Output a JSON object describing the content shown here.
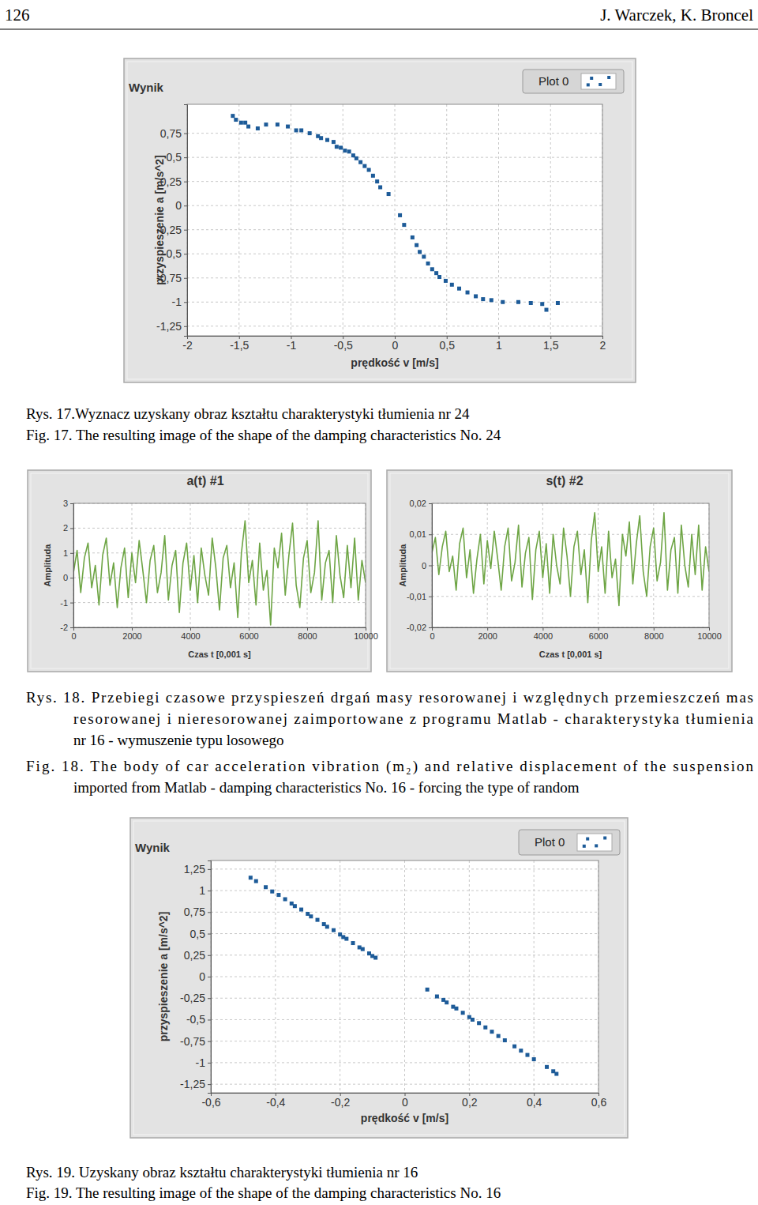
{
  "header": {
    "page": "126",
    "authors": "J. Warczek, K. Broncel"
  },
  "captions": {
    "fig17": {
      "pl": [
        "Rys. 17.Wyznacz uzyskany obraz kształtu charakterystyki tłumienia nr 24"
      ],
      "en": [
        "Fig. 17. The resulting image of the shape of the damping characteristics No. 24"
      ]
    },
    "fig18": {
      "pl": [
        "Rys. 18. Przebiegi czasowe przyspieszeń drgań masy resorowanej i względnych przemieszczeń mas",
        "resorowanej i nieresorowanej zaimportowane z programu Matlab - charakterystyka tłumienia",
        "nr 16 - wymuszenie typu losowego"
      ],
      "en": [
        "Fig. 18. The body of car acceleration vibration  (m₂) and relative displacement of the suspension",
        "imported from Matlab - damping characteristics No. 16 - forcing the type of random"
      ]
    },
    "fig19": {
      "pl": [
        "Rys. 19. Uzyskany obraz kształtu charakterystyki tłumienia nr 16"
      ],
      "en": [
        "Fig. 19. The resulting image of the shape of the damping characteristics No. 16"
      ]
    }
  },
  "chart_data": [
    {
      "type": "scatter",
      "title": "Wynik",
      "xlabel": "prędkość v [m/s]",
      "ylabel": "przyspieszenie a [m/s^2]",
      "xlim": [
        -2,
        2
      ],
      "ylim": [
        -1.35,
        1.05
      ],
      "xticks": [
        -2,
        {
          "value": -1.5,
          "label": "-1,5"
        },
        -1,
        {
          "value": -0.5,
          "label": "-0,5"
        },
        0,
        {
          "value": 0.5,
          "label": "0,5"
        },
        1,
        {
          "value": 1.5,
          "label": "1,5"
        },
        2
      ],
      "yticks": [
        {
          "value": -1.25,
          "label": "-1,25"
        },
        -1,
        {
          "value": -0.75,
          "label": "-0,75"
        },
        {
          "value": -0.5,
          "label": "-0,5"
        },
        {
          "value": -0.25,
          "label": "-0,25"
        },
        0,
        {
          "value": 0.25,
          "label": "0,25"
        },
        {
          "value": 0.5,
          "label": "0,5"
        },
        {
          "value": 0.75,
          "label": "0,75"
        }
      ],
      "grid": true,
      "legend": "top-right",
      "x": [
        -1.56,
        -1.53,
        -1.48,
        -1.44,
        -1.41,
        -1.32,
        -1.24,
        -1.13,
        -1.03,
        -0.95,
        -0.9,
        -0.82,
        -0.74,
        -0.71,
        -0.65,
        -0.59,
        -0.56,
        -0.52,
        -0.48,
        -0.44,
        -0.4,
        -0.37,
        -0.33,
        -0.29,
        -0.25,
        -0.21,
        -0.17,
        -0.14,
        -0.06,
        0.05,
        0.09,
        0.17,
        0.21,
        0.24,
        0.28,
        0.32,
        0.36,
        0.4,
        0.43,
        0.49,
        0.55,
        0.62,
        0.7,
        0.78,
        0.85,
        0.93,
        1.04,
        1.19,
        1.31,
        1.42,
        1.57,
        1.46
      ],
      "series": [
        {
          "name": "Plot 0",
          "color": "#1d5b98",
          "marker": "square",
          "values": [
            0.93,
            0.89,
            0.86,
            0.86,
            0.82,
            0.8,
            0.84,
            0.84,
            0.82,
            0.78,
            0.78,
            0.75,
            0.72,
            0.7,
            0.68,
            0.66,
            0.61,
            0.6,
            0.57,
            0.56,
            0.52,
            0.49,
            0.45,
            0.41,
            0.37,
            0.31,
            0.25,
            0.19,
            0.12,
            -0.1,
            -0.2,
            -0.33,
            -0.41,
            -0.48,
            -0.53,
            -0.6,
            -0.66,
            -0.7,
            -0.74,
            -0.78,
            -0.82,
            -0.86,
            -0.9,
            -0.94,
            -0.97,
            -0.98,
            -1,
            -1,
            -1.01,
            -1.02,
            -1.01,
            -1.08
          ]
        }
      ]
    },
    {
      "type": "line",
      "title": "a(t) #1",
      "xlabel": "Czas t [0,001 s]",
      "ylabel": "Amplituda",
      "xlim": [
        0,
        10000
      ],
      "ylim": [
        -2,
        3
      ],
      "xticks": [
        0,
        2000,
        4000,
        6000,
        8000,
        10000
      ],
      "yticks": [
        -2,
        -1,
        0,
        1,
        2,
        3
      ],
      "grid": true,
      "x": [
        0,
        125,
        250,
        375,
        500,
        625,
        750,
        875,
        1000,
        1125,
        1250,
        1375,
        1500,
        1625,
        1750,
        1875,
        2000,
        2125,
        2250,
        2375,
        2500,
        2625,
        2750,
        2875,
        3000,
        3125,
        3250,
        3375,
        3500,
        3625,
        3750,
        3875,
        4000,
        4125,
        4250,
        4375,
        4500,
        4625,
        4750,
        4875,
        5000,
        5125,
        5250,
        5375,
        5500,
        5625,
        5750,
        5875,
        6000,
        6125,
        6250,
        6375,
        6500,
        6625,
        6750,
        6875,
        7000,
        7125,
        7250,
        7375,
        7500,
        7625,
        7750,
        7875,
        8000,
        8125,
        8250,
        8375,
        8500,
        8625,
        8750,
        8875,
        9000,
        9125,
        9250,
        9375,
        9500,
        9625,
        9750,
        9875,
        10000
      ],
      "series": [
        {
          "color": "#6ea545",
          "values": [
            0.2,
            1.1,
            -0.6,
            0.8,
            1.4,
            -0.4,
            0.5,
            -1.1,
            0.9,
            1.6,
            -0.3,
            0.6,
            -1.2,
            0.4,
            1.2,
            -0.8,
            1.0,
            -0.2,
            1.5,
            0.3,
            -1.0,
            0.7,
            1.3,
            -0.6,
            0.2,
            1.7,
            -0.9,
            0.5,
            1.1,
            -1.4,
            0.6,
            1.4,
            -0.5,
            0.9,
            -1.0,
            1.2,
            0.1,
            -0.7,
            1.6,
            0.4,
            -1.3,
            0.8,
            1.3,
            -0.4,
            0.6,
            -1.6,
            1.0,
            2.3,
            -0.2,
            0.7,
            -1.1,
            1.4,
            -0.5,
            0.3,
            -1.9,
            1.2,
            0.4,
            1.8,
            -0.7,
            0.9,
            2.2,
            -0.3,
            -1.2,
            0.8,
            1.5,
            -0.6,
            0.2,
            2.3,
            -0.9,
            0.6,
            1.1,
            -1.0,
            1.7,
            0.1,
            -0.8,
            1.3,
            -0.4,
            1.6,
            -0.9,
            0.7,
            -0.2
          ]
        }
      ]
    },
    {
      "type": "line",
      "title": "s(t) #2",
      "xlabel": "Czas t [0,001 s]",
      "ylabel": "Amplituda",
      "xlim": [
        0,
        10000
      ],
      "ylim": [
        -0.02,
        0.02
      ],
      "xticks": [
        0,
        2000,
        4000,
        6000,
        8000,
        10000
      ],
      "yticks": [
        {
          "value": -0.02,
          "label": "-0,02"
        },
        {
          "value": -0.01,
          "label": "-0,01"
        },
        0,
        {
          "value": 0.01,
          "label": "0,01"
        },
        {
          "value": 0.02,
          "label": "0,02"
        }
      ],
      "grid": true,
      "x": [
        0,
        125,
        250,
        375,
        500,
        625,
        750,
        875,
        1000,
        1125,
        1250,
        1375,
        1500,
        1625,
        1750,
        1875,
        2000,
        2125,
        2250,
        2375,
        2500,
        2625,
        2750,
        2875,
        3000,
        3125,
        3250,
        3375,
        3500,
        3625,
        3750,
        3875,
        4000,
        4125,
        4250,
        4375,
        4500,
        4625,
        4750,
        4875,
        5000,
        5125,
        5250,
        5375,
        5500,
        5625,
        5750,
        5875,
        6000,
        6125,
        6250,
        6375,
        6500,
        6625,
        6750,
        6875,
        7000,
        7125,
        7250,
        7375,
        7500,
        7625,
        7750,
        7875,
        8000,
        8125,
        8250,
        8375,
        8500,
        8625,
        8750,
        8875,
        9000,
        9125,
        9250,
        9375,
        9500,
        9625,
        9750,
        9875,
        10000
      ],
      "series": [
        {
          "color": "#6ea545",
          "values": [
            0.004,
            0.009,
            -0.003,
            0.006,
            0.011,
            -0.002,
            0.003,
            -0.008,
            0.007,
            0.012,
            -0.004,
            0.005,
            -0.009,
            0.002,
            0.01,
            -0.006,
            0.008,
            -0.001,
            0.011,
            0.002,
            -0.008,
            0.006,
            0.012,
            -0.005,
            0.001,
            0.013,
            -0.007,
            0.004,
            0.009,
            -0.011,
            0.005,
            0.011,
            -0.004,
            0.007,
            -0.009,
            0.01,
            0,
            -0.006,
            0.012,
            0.003,
            -0.01,
            0.006,
            0.011,
            -0.003,
            0.005,
            -0.012,
            0.008,
            0.017,
            -0.002,
            0.006,
            -0.009,
            0.011,
            -0.004,
            0.002,
            -0.013,
            0.01,
            0.003,
            0.014,
            -0.006,
            0.007,
            0.016,
            -0.002,
            -0.01,
            0.006,
            0.012,
            -0.005,
            0.001,
            0.017,
            -0.008,
            0.005,
            0.009,
            -0.009,
            0.013,
            0,
            -0.007,
            0.01,
            -0.003,
            0.013,
            -0.008,
            0.006,
            -0.002
          ]
        }
      ]
    },
    {
      "type": "scatter",
      "title": "Wynik",
      "xlabel": "prędkość v [m/s]",
      "ylabel": "przyspieszenie a [m/s^2]",
      "xlim": [
        -0.6,
        0.6
      ],
      "ylim": [
        -1.35,
        1.35
      ],
      "xticks": [
        {
          "value": -0.6,
          "label": "-0,6"
        },
        {
          "value": -0.4,
          "label": "-0,4"
        },
        {
          "value": -0.2,
          "label": "-0,2"
        },
        0,
        {
          "value": 0.2,
          "label": "0,2"
        },
        {
          "value": 0.4,
          "label": "0,4"
        },
        {
          "value": 0.6,
          "label": "0,6"
        }
      ],
      "yticks": [
        {
          "value": -1.25,
          "label": "-1,25"
        },
        -1,
        {
          "value": -0.75,
          "label": "-0,75"
        },
        {
          "value": -0.5,
          "label": "-0,5"
        },
        {
          "value": -0.25,
          "label": "-0,25"
        },
        0,
        {
          "value": 0.25,
          "label": "0,25"
        },
        {
          "value": 0.5,
          "label": "0,5"
        },
        {
          "value": 0.75,
          "label": "0,75"
        },
        1,
        {
          "value": 1.25,
          "label": "1,25"
        }
      ],
      "grid": true,
      "legend": "top-right",
      "x": [
        -0.477,
        -0.46,
        -0.43,
        -0.41,
        -0.39,
        -0.37,
        -0.35,
        -0.34,
        -0.32,
        -0.3,
        -0.29,
        -0.27,
        -0.25,
        -0.24,
        -0.22,
        -0.2,
        -0.19,
        -0.18,
        -0.16,
        -0.14,
        -0.13,
        -0.11,
        -0.1,
        -0.09,
        0.07,
        0.1,
        0.12,
        0.13,
        0.15,
        0.16,
        0.18,
        0.2,
        0.21,
        0.23,
        0.25,
        0.27,
        0.29,
        0.31,
        0.34,
        0.36,
        0.38,
        0.4,
        0.44,
        0.46,
        0.47
      ],
      "series": [
        {
          "name": "Plot 0",
          "color": "#1d5b98",
          "marker": "square",
          "values": [
            1.15,
            1.11,
            1.04,
            0.99,
            0.95,
            0.9,
            0.85,
            0.82,
            0.78,
            0.73,
            0.7,
            0.66,
            0.61,
            0.58,
            0.54,
            0.49,
            0.46,
            0.44,
            0.39,
            0.34,
            0.32,
            0.27,
            0.24,
            0.22,
            -0.15,
            -0.23,
            -0.27,
            -0.3,
            -0.35,
            -0.37,
            -0.42,
            -0.47,
            -0.5,
            -0.54,
            -0.59,
            -0.64,
            -0.69,
            -0.74,
            -0.81,
            -0.86,
            -0.91,
            -0.96,
            -1.05,
            -1.1,
            -1.13
          ]
        }
      ]
    }
  ]
}
